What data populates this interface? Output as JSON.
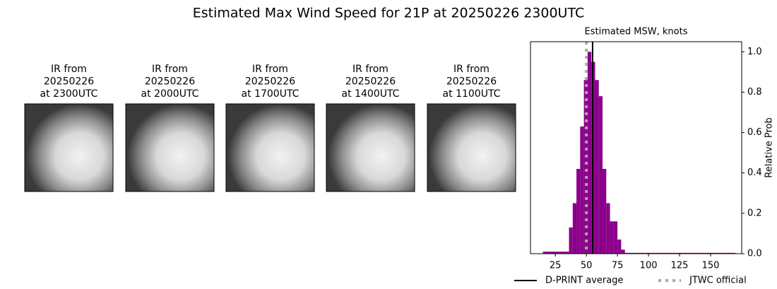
{
  "title": "Estimated Max Wind Speed for 21P at 20250226 2300UTC",
  "images": [
    {
      "lines": [
        "IR from",
        "20250226",
        "at 2300UTC"
      ]
    },
    {
      "lines": [
        "IR from",
        "20250226",
        "at 2000UTC"
      ]
    },
    {
      "lines": [
        "IR from",
        "20250226",
        "at 1700UTC"
      ]
    },
    {
      "lines": [
        "IR from",
        "20250226",
        "at 1400UTC"
      ]
    },
    {
      "lines": [
        "IR from",
        "20250226",
        "at 1100UTC"
      ]
    }
  ],
  "chart_data": {
    "type": "histogram",
    "title": "Estimated MSW, knots",
    "ylabel": "Relative Prob",
    "bins": [
      15,
      36,
      39,
      42,
      45,
      48,
      51,
      54,
      57,
      60,
      63,
      66,
      69,
      72,
      75,
      78,
      81,
      170
    ],
    "values": [
      0.01,
      0.13,
      0.25,
      0.42,
      0.63,
      0.86,
      1.0,
      0.95,
      0.86,
      0.78,
      0.42,
      0.25,
      0.16,
      0.16,
      0.07,
      0.02,
      0.004
    ],
    "color": "#8b008b",
    "xlim": [
      5,
      175
    ],
    "ylim": [
      0,
      1.05
    ],
    "xticks": [
      25,
      50,
      75,
      100,
      125,
      150
    ],
    "yticks": [
      {
        "value": 0,
        "label": "0.0"
      },
      0.2,
      0.4,
      0.6,
      0.8,
      {
        "value": 1,
        "label": "1.0"
      }
    ],
    "lines": [
      {
        "name": "D-PRINT average",
        "value": 55,
        "color": "#000000",
        "style": "solid"
      },
      {
        "name": "JTWC official",
        "value": 50,
        "color": "#a9a9a9",
        "style": "dotted"
      }
    ],
    "legend": "lower center"
  }
}
